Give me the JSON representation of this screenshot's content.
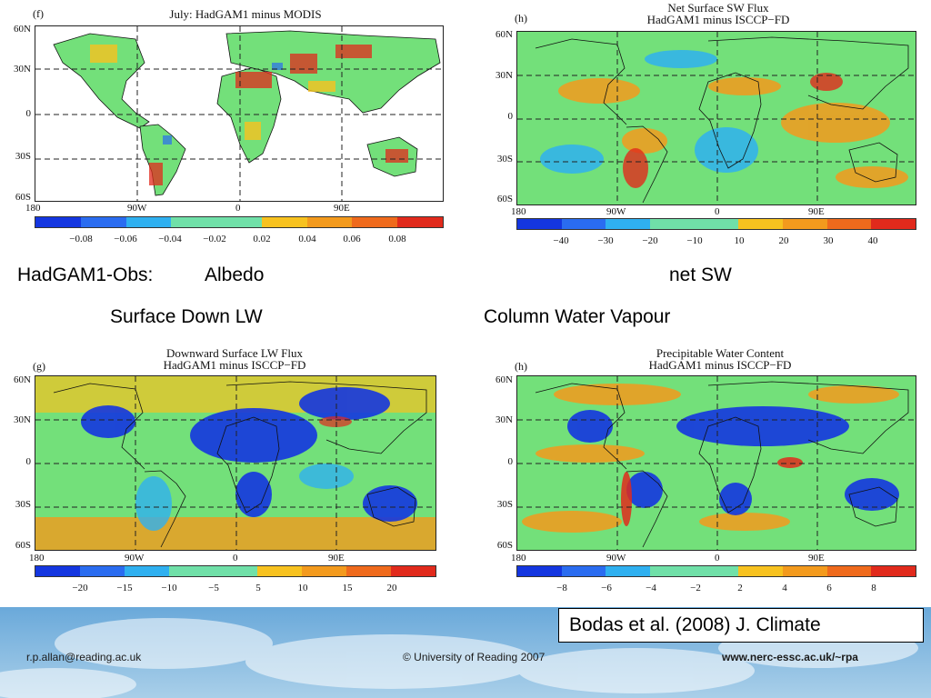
{
  "colors": {
    "colorbar": [
      "#1436e0",
      "#2a6cf0",
      "#2fb0f0",
      "#70e0a8",
      "#f7c21f",
      "#f39a1d",
      "#ef6a1c",
      "#e12a1c"
    ],
    "ocean_neutral": "#73e07a",
    "ocean_blue": "#2a5cf0",
    "ocean_orange": "#f39a1d",
    "land_line": "#111111",
    "footer_sky": "#7fb6df"
  },
  "panels": [
    {
      "id": "f",
      "label": "(f)",
      "title_lines": [
        "July: HadGAM1 minus MODIS"
      ],
      "lat_ticks": [
        "60N",
        "30N",
        "0",
        "30S",
        "60S"
      ],
      "lon_ticks": [
        "180",
        "90W",
        "0",
        "90E"
      ],
      "colorbar_ticks": [
        "−0.08",
        "−0.06",
        "−0.04",
        "−0.02",
        "0.02",
        "0.04",
        "0.06",
        "0.08"
      ],
      "map_style": "albedo"
    },
    {
      "id": "h_sw",
      "label": "(h)",
      "title_lines": [
        "Net Surface SW Flux",
        "HadGAM1 minus ISCCP−FD"
      ],
      "lat_ticks": [
        "60N",
        "30N",
        "0",
        "30S",
        "60S"
      ],
      "lon_ticks": [
        "180",
        "90W",
        "0",
        "90E"
      ],
      "colorbar_ticks": [
        "−40",
        "−30",
        "−20",
        "−10",
        "10",
        "20",
        "30",
        "40"
      ],
      "map_style": "sw"
    },
    {
      "id": "g",
      "label": "(g)",
      "title_lines": [
        "Downward Surface LW Flux",
        "HadGAM1 minus ISCCP−FD"
      ],
      "lat_ticks": [
        "60N",
        "30N",
        "0",
        "30S",
        "60S"
      ],
      "lon_ticks": [
        "180",
        "90W",
        "0",
        "90E"
      ],
      "colorbar_ticks": [
        "−20",
        "−15",
        "−10",
        "−5",
        "5",
        "10",
        "15",
        "20"
      ],
      "map_style": "lw"
    },
    {
      "id": "h_pw",
      "label": "(h)",
      "title_lines": [
        "Precipitable Water Content",
        "HadGAM1 minus ISCCP−FD"
      ],
      "lat_ticks": [
        "60N",
        "30N",
        "0",
        "30S",
        "60S"
      ],
      "lon_ticks": [
        "180",
        "90W",
        "0",
        "90E"
      ],
      "colorbar_ticks": [
        "−8",
        "−6",
        "−4",
        "−2",
        "2",
        "4",
        "6",
        "8"
      ],
      "map_style": "pw"
    }
  ],
  "captions": {
    "albedo_prefix": "HadGAM1-Obs:",
    "albedo": "Albedo",
    "net_sw": "net SW",
    "surface_down_lw": "Surface Down LW",
    "column_water_vapour": "Column Water Vapour"
  },
  "citation": "Bodas et al. (2008) J. Climate",
  "footer": {
    "email": "r.p.allan@reading.ac.uk",
    "copyright": "© University of Reading 2007",
    "website": "www.nerc-essc.ac.uk/~rpa"
  }
}
